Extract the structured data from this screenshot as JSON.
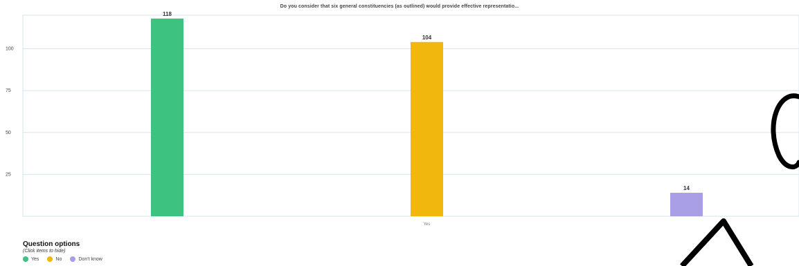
{
  "chart_data": {
    "type": "bar",
    "title": "Do you consider that six general constituencies (as outlined) would provide effective representatio...",
    "categories": [
      "Yes"
    ],
    "series": [
      {
        "name": "Yes",
        "values": [
          118
        ],
        "color": "#3ec27f"
      },
      {
        "name": "No",
        "values": [
          104
        ],
        "color": "#f2b70c"
      },
      {
        "name": "Don't know",
        "values": [
          14
        ],
        "color": "#a99fe6"
      }
    ],
    "yticks": [
      25,
      50,
      75,
      100
    ],
    "ylim": [
      0,
      120
    ],
    "xlabel": "",
    "ylabel": "",
    "grid": true,
    "legend": "bottom-left"
  },
  "legend": {
    "title": "Question options",
    "subtitle": "(Click items to hide)",
    "items": [
      "Yes",
      "No",
      "Don't know"
    ]
  },
  "colors": {
    "grid": "#d5e4ee",
    "watermark": "#000000"
  }
}
